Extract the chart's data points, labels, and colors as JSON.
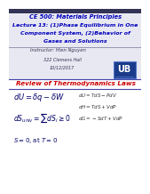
{
  "bg_color": "#ffffff",
  "slide_bg": "#ffffff",
  "title_area_bg": "#e8e8f2",
  "title_line1": "CE 500: Materials Principles",
  "title_line2": "Lecture 13: (1)Phase Equilibrium in One",
  "title_line3": "Component System, (2)Behavior of",
  "title_line4": "Gases and Solutions",
  "instructor": "Instructor: Hien Nguyen",
  "room": "322 Clemens Hall",
  "date": "10/12/2017",
  "section_title": "Review of Thermodynamics Laws",
  "eq1": "$dU = \\delta q - \\delta W$",
  "eq2": "$dS_{univ} = \\sum dS_i \\geq 0$",
  "eq3": "$S = 0$, at $T = 0$",
  "right_eq1": "$dU = TdS - PdV$",
  "right_eq2": "$dH = TdS + VdP$",
  "right_eq3": "$dG = -SdT + VdP$",
  "title_color": "#0000bb",
  "section_color": "#cc0000",
  "eq_color": "#000066",
  "right_eq_color": "#333333",
  "logo_color": "#1a3a8a",
  "logo_border": "#5577cc",
  "divider_color": "#8888aa",
  "section_line_color": "#4444aa"
}
